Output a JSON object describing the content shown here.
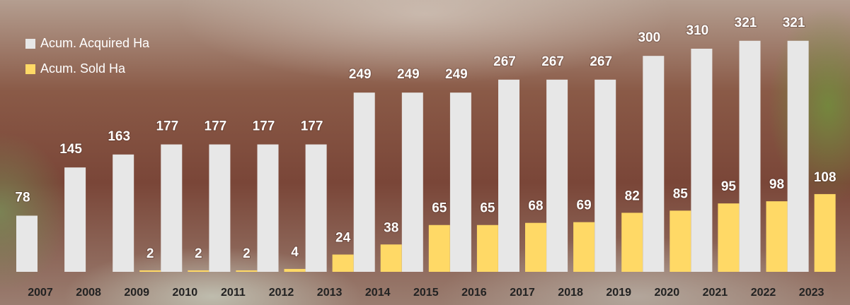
{
  "chart_data": {
    "type": "bar",
    "categories": [
      "2007",
      "2008",
      "2009",
      "2010",
      "2011",
      "2012",
      "2013",
      "2014",
      "2015",
      "2016",
      "2017",
      "2018",
      "2019",
      "2020",
      "2021",
      "2022",
      "2023"
    ],
    "series": [
      {
        "name": "Acum. Acquired Ha",
        "color": "#e7e7e7",
        "values": [
          78,
          145,
          163,
          177,
          177,
          177,
          177,
          249,
          249,
          249,
          267,
          267,
          267,
          300,
          310,
          321,
          321
        ]
      },
      {
        "name": "Acum. Sold Ha",
        "color": "#ffd966",
        "values": [
          null,
          null,
          2,
          2,
          2,
          4,
          24,
          38,
          65,
          65,
          68,
          69,
          82,
          85,
          95,
          98,
          108
        ]
      }
    ],
    "ylim": [
      0,
      360
    ],
    "legend": "top-left"
  }
}
